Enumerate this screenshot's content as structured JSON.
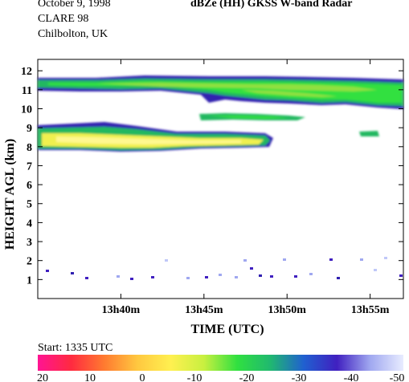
{
  "header": {
    "date": "October  9, 1998",
    "campaign": "CLARE 98",
    "site": "Chilbolton, UK",
    "title": "dBZe (HH)   GKSS  W-band Radar"
  },
  "footer": {
    "start": "Start: 1335 UTC"
  },
  "colorbar": {
    "labels": [
      "20",
      "10",
      "0",
      "-10",
      "-20",
      "-30",
      "-40",
      "-50"
    ],
    "stops": [
      "#ff1493",
      "#ff2a40",
      "#ff7a30",
      "#ffc840",
      "#fff050",
      "#c8f040",
      "#30e040",
      "#20b870",
      "#2060d0",
      "#4020c0",
      "#a0a8f0",
      "#e8ecff"
    ]
  },
  "chart_data": {
    "type": "heatmap",
    "title": "dBZe (HH)   GKSS  W-band Radar",
    "xlabel": "TIME (UTC)",
    "ylabel": "HEIGHT AGL (km)",
    "xlim": [
      "13h35m",
      "13h57m"
    ],
    "ylim": [
      0,
      12.6
    ],
    "x_ticks": [
      "13h40m",
      "13h45m",
      "13h50m",
      "13h55m"
    ],
    "y_ticks": [
      1,
      2,
      3,
      4,
      5,
      6,
      7,
      8,
      9,
      10,
      11,
      12
    ],
    "colorbar_range_dbz": [
      20,
      -50
    ],
    "features": [
      {
        "name": "upper cloud layer",
        "time_start": "13h35m",
        "time_end": "13h57m",
        "base_km": 10.0,
        "top_km": 11.5,
        "peak_dbz": -20
      },
      {
        "name": "lower cloud layer",
        "time_start": "13h35m",
        "time_end": "13h48m",
        "base_km": 7.8,
        "top_km": 9.0,
        "peak_dbz": -10
      },
      {
        "name": "small patch",
        "time_start": "13h45m",
        "time_end": "13h50m",
        "base_km": 9.2,
        "top_km": 9.7,
        "peak_dbz": -25
      },
      {
        "name": "small patch",
        "time_start": "13h53m",
        "time_end": "13h54m",
        "base_km": 8.5,
        "top_km": 8.8,
        "peak_dbz": -25
      }
    ]
  }
}
